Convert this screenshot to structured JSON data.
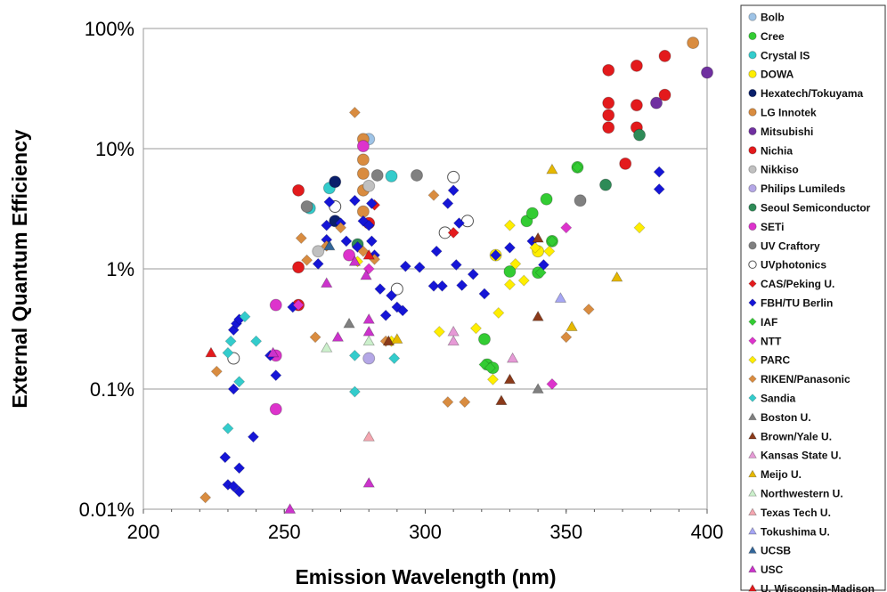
{
  "chart_data": {
    "type": "scatter",
    "title": "",
    "xlabel": "Emission Wavelength (nm)",
    "ylabel": "External Quantum Efficiency",
    "xlim": [
      200,
      400
    ],
    "ylim": [
      0.01,
      100
    ],
    "y_scale": "log",
    "x_ticks": [
      "200",
      "250",
      "300",
      "350",
      "400"
    ],
    "y_ticks": [
      "0.01%",
      "0.1%",
      "1%",
      "10%",
      "100%"
    ],
    "grid": "horizontal",
    "legend_position": "right",
    "series": [
      {
        "name": "Bolb",
        "marker": "circle",
        "color": "#9ec3e6",
        "points": [
          [
            280,
            12
          ]
        ]
      },
      {
        "name": "Cree",
        "marker": "circle",
        "color": "#33cc33",
        "points": [
          [
            321,
            0.26
          ],
          [
            322,
            0.16
          ],
          [
            324,
            0.15
          ],
          [
            330,
            0.95
          ],
          [
            336,
            2.5
          ],
          [
            338,
            2.9
          ],
          [
            343,
            3.8
          ],
          [
            340,
            0.93
          ],
          [
            345,
            1.7
          ],
          [
            354,
            7
          ]
        ]
      },
      {
        "name": "Crystal IS",
        "marker": "circle",
        "color": "#33cccc",
        "points": [
          [
            259,
            3.2
          ],
          [
            266,
            4.7
          ],
          [
            288,
            5.9
          ]
        ]
      },
      {
        "name": "DOWA",
        "marker": "circle",
        "color": "#ffee00",
        "points": [
          [
            325,
            1.3
          ],
          [
            340,
            1.4
          ]
        ]
      },
      {
        "name": "Hexatech/Tokuyama",
        "marker": "circle",
        "color": "#0a1f6b",
        "points": [
          [
            268,
            5.3
          ],
          [
            268,
            2.5
          ]
        ]
      },
      {
        "name": "LG Innotek",
        "marker": "circle",
        "color": "#d98c40",
        "points": [
          [
            278,
            12
          ],
          [
            278,
            8.1
          ],
          [
            278,
            6.2
          ],
          [
            278,
            4.5
          ],
          [
            278,
            3
          ],
          [
            395,
            76
          ]
        ]
      },
      {
        "name": "Mitsubishi",
        "marker": "circle",
        "color": "#7030a0",
        "points": [
          [
            382,
            24
          ],
          [
            400,
            43
          ]
        ]
      },
      {
        "name": "Nichia",
        "marker": "circle",
        "color": "#e31a1c",
        "points": [
          [
            255,
            4.5
          ],
          [
            255,
            1.03
          ],
          [
            255,
            0.5
          ],
          [
            280,
            2.4
          ],
          [
            365,
            45
          ],
          [
            365,
            24
          ],
          [
            365,
            19
          ],
          [
            365,
            15
          ],
          [
            375,
            49
          ],
          [
            375,
            23
          ],
          [
            375,
            15
          ],
          [
            385,
            59
          ],
          [
            385,
            28
          ],
          [
            371,
            7.5
          ]
        ]
      },
      {
        "name": "Nikkiso",
        "marker": "circle",
        "color": "#c0c0c0",
        "points": [
          [
            262,
            1.4
          ],
          [
            280,
            4.9
          ]
        ]
      },
      {
        "name": "Philips Lumileds",
        "marker": "circle",
        "color": "#b4a7e6",
        "points": [
          [
            280,
            0.18
          ]
        ]
      },
      {
        "name": "Seoul Semiconductor",
        "marker": "circle",
        "color": "#2e8b57",
        "points": [
          [
            276,
            1.6
          ],
          [
            364,
            5
          ],
          [
            376,
            13
          ]
        ]
      },
      {
        "name": "SETi",
        "marker": "circle",
        "color": "#dd33cc",
        "points": [
          [
            247,
            0.5
          ],
          [
            247,
            0.19
          ],
          [
            247,
            0.068
          ],
          [
            273,
            1.3
          ],
          [
            278,
            10.5
          ]
        ]
      },
      {
        "name": "UV Craftory",
        "marker": "circle",
        "color": "#808080",
        "points": [
          [
            258,
            3.3
          ],
          [
            283,
            6
          ],
          [
            297,
            6
          ],
          [
            355,
            3.7
          ]
        ]
      },
      {
        "name": "UVphotonics",
        "marker": "circle",
        "color": "#ffffff",
        "points": [
          [
            232,
            0.18
          ],
          [
            268,
            3.3
          ],
          [
            290,
            0.68
          ],
          [
            307,
            2
          ],
          [
            310,
            5.8
          ],
          [
            315,
            2.5
          ]
        ]
      },
      {
        "name": "CAS/Peking U.",
        "marker": "diamond",
        "color": "#e31a1c",
        "points": [
          [
            282,
            3.4
          ],
          [
            310,
            2
          ]
        ]
      },
      {
        "name": "FBH/TU Berlin",
        "marker": "diamond",
        "color": "#1515d6",
        "points": [
          [
            230,
            0.016
          ],
          [
            229,
            0.027
          ],
          [
            232,
            0.0155
          ],
          [
            234,
            0.022
          ],
          [
            234,
            0.014
          ],
          [
            239,
            0.04
          ],
          [
            232,
            0.1
          ],
          [
            232,
            0.31
          ],
          [
            233,
            0.35
          ],
          [
            234,
            0.38
          ],
          [
            245,
            0.19
          ],
          [
            247,
            0.13
          ],
          [
            253,
            0.48
          ],
          [
            262,
            1.1
          ],
          [
            265,
            1.75
          ],
          [
            265,
            2.3
          ],
          [
            266,
            3.6
          ],
          [
            270,
            2.4
          ],
          [
            272,
            1.7
          ],
          [
            275,
            3.7
          ],
          [
            276,
            1.52
          ],
          [
            278,
            2.5
          ],
          [
            280,
            2.3
          ],
          [
            281,
            1.7
          ],
          [
            281,
            3.5
          ],
          [
            282,
            1.3
          ],
          [
            284,
            0.68
          ],
          [
            286,
            0.41
          ],
          [
            288,
            0.6
          ],
          [
            290,
            0.48
          ],
          [
            292,
            0.45
          ],
          [
            293,
            1.05
          ],
          [
            298,
            1.03
          ],
          [
            303,
            0.72
          ],
          [
            304,
            1.4
          ],
          [
            306,
            0.72
          ],
          [
            308,
            3.5
          ],
          [
            310,
            4.5
          ],
          [
            311,
            1.08
          ],
          [
            312,
            2.4
          ],
          [
            313,
            0.73
          ],
          [
            317,
            0.9
          ],
          [
            321,
            0.62
          ],
          [
            325,
            1.3
          ],
          [
            330,
            1.5
          ],
          [
            338,
            1.7
          ],
          [
            342,
            1.08
          ],
          [
            383,
            6.4
          ],
          [
            383,
            4.6
          ]
        ]
      },
      {
        "name": "IAF",
        "marker": "diamond",
        "color": "#33cc33",
        "points": [
          [
            321,
            0.16
          ],
          [
            323,
            0.15
          ],
          [
            341,
            0.93
          ],
          [
            345,
            1.7
          ],
          [
            354,
            7
          ]
        ]
      },
      {
        "name": "NTT",
        "marker": "diamond",
        "color": "#dd33cc",
        "points": [
          [
            255,
            0.5
          ],
          [
            280,
            1
          ],
          [
            345,
            0.11
          ],
          [
            350,
            2.2
          ]
        ]
      },
      {
        "name": "PARC",
        "marker": "diamond",
        "color": "#ffee00",
        "points": [
          [
            276,
            1.15
          ],
          [
            288,
            0.25
          ],
          [
            305,
            0.3
          ],
          [
            318,
            0.32
          ],
          [
            324,
            0.12
          ],
          [
            326,
            0.43
          ],
          [
            330,
            0.74
          ],
          [
            330,
            2.3
          ],
          [
            332,
            1.1
          ],
          [
            335,
            0.8
          ],
          [
            339,
            1.5
          ],
          [
            344,
            1.4
          ],
          [
            376,
            2.2
          ]
        ]
      },
      {
        "name": "RIKEN/Panasonic",
        "marker": "diamond",
        "color": "#d98c40",
        "points": [
          [
            222,
            0.0125
          ],
          [
            226,
            0.14
          ],
          [
            256,
            1.8
          ],
          [
            258,
            1.18
          ],
          [
            261,
            0.27
          ],
          [
            265,
            1.55
          ],
          [
            270,
            2.2
          ],
          [
            275,
            20
          ],
          [
            278,
            1.4
          ],
          [
            282,
            1.2
          ],
          [
            286,
            0.25
          ],
          [
            303,
            4.1
          ],
          [
            308,
            0.078
          ],
          [
            314,
            0.078
          ],
          [
            350,
            0.27
          ],
          [
            358,
            0.46
          ]
        ]
      },
      {
        "name": "Sandia",
        "marker": "diamond",
        "color": "#33cccc",
        "points": [
          [
            230,
            0.2
          ],
          [
            231,
            0.25
          ],
          [
            234,
            0.115
          ],
          [
            236,
            0.4
          ],
          [
            240,
            0.25
          ],
          [
            275,
            0.19
          ],
          [
            275,
            0.095
          ],
          [
            289,
            0.18
          ],
          [
            230,
            0.047
          ]
        ]
      },
      {
        "name": "Boston U.",
        "marker": "triangle",
        "color": "#808080",
        "points": [
          [
            273,
            0.35
          ],
          [
            340,
            0.1
          ]
        ]
      },
      {
        "name": "Brown/Yale U.",
        "marker": "triangle",
        "color": "#8b3a1a",
        "points": [
          [
            287,
            0.25
          ],
          [
            327,
            0.08
          ],
          [
            330,
            0.12
          ],
          [
            340,
            0.4
          ],
          [
            340,
            1.8
          ]
        ]
      },
      {
        "name": "Kansas State U.",
        "marker": "triangle",
        "color": "#e69ad6",
        "points": [
          [
            310,
            0.3
          ],
          [
            310,
            0.25
          ],
          [
            331,
            0.18
          ]
        ]
      },
      {
        "name": "Meijo U.",
        "marker": "triangle",
        "color": "#e6b800",
        "points": [
          [
            290,
            0.26
          ],
          [
            345,
            6.7
          ],
          [
            352,
            0.33
          ],
          [
            368,
            0.85
          ]
        ]
      },
      {
        "name": "Northwestern U.",
        "marker": "triangle",
        "color": "#ccf0cc",
        "points": [
          [
            265,
            0.22
          ],
          [
            280,
            0.25
          ]
        ]
      },
      {
        "name": "Texas Tech U.",
        "marker": "triangle",
        "color": "#f4a6b0",
        "points": [
          [
            280,
            0.04
          ]
        ]
      },
      {
        "name": "Tokushima U.",
        "marker": "triangle",
        "color": "#a6a6f4",
        "points": [
          [
            348,
            0.57
          ]
        ]
      },
      {
        "name": "UCSB",
        "marker": "triangle",
        "color": "#336699",
        "points": [
          [
            266,
            1.55
          ]
        ]
      },
      {
        "name": "USC",
        "marker": "triangle",
        "color": "#cc33cc",
        "points": [
          [
            246,
            0.2
          ],
          [
            252,
            0.01
          ],
          [
            265,
            0.76
          ],
          [
            269,
            0.27
          ],
          [
            275,
            1.15
          ],
          [
            279,
            0.88
          ],
          [
            280,
            0.0165
          ],
          [
            280,
            0.38
          ],
          [
            280,
            0.3
          ]
        ]
      },
      {
        "name": "U. Wisconsin-Madison",
        "marker": "triangle",
        "color": "#e31a1c",
        "points": [
          [
            224,
            0.2
          ],
          [
            280,
            1.3
          ]
        ]
      }
    ]
  }
}
